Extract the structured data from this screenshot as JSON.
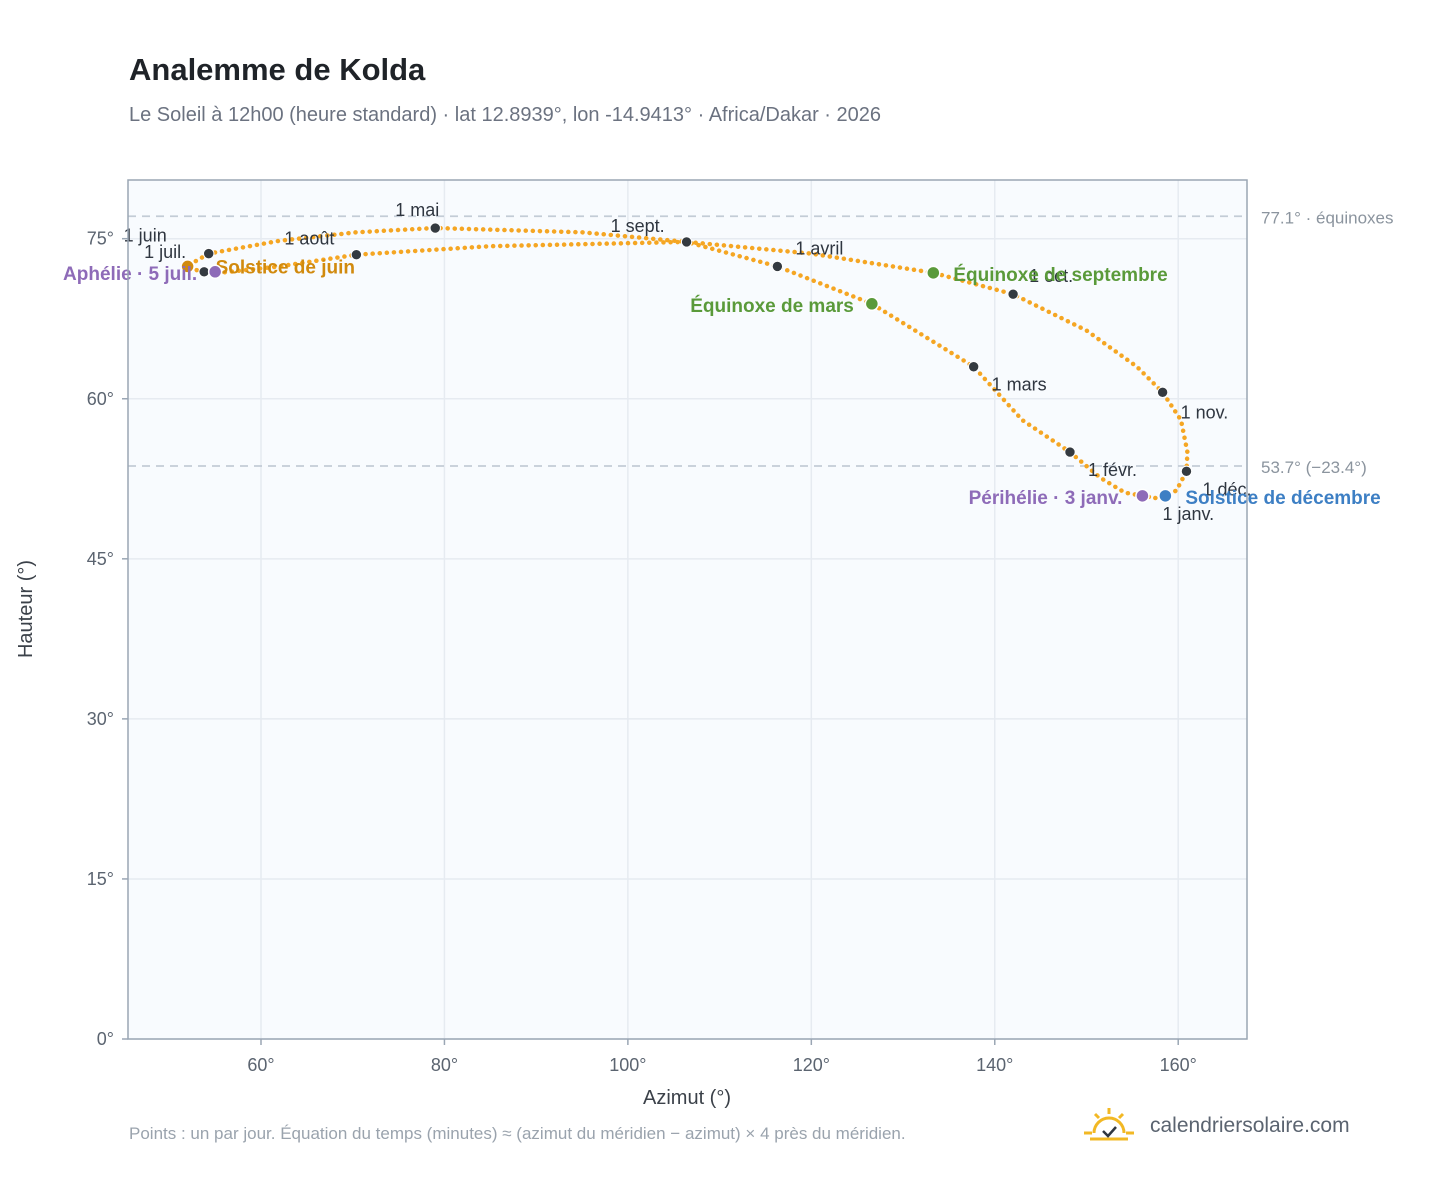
{
  "header": {
    "title": "Analemme de Kolda",
    "subtitle": "Le Soleil à 12h00 (heure standard) · lat 12.8939°, lon -14.9413° · Africa/Dakar · 2026"
  },
  "footer": {
    "note": "Points : un par jour. Équation du temps (minutes) ≈ (azimut du méridien − azimut) × 4 près du méridien.",
    "brand": "calendriersolaire.com"
  },
  "colors": {
    "curve": "#f5a623",
    "month_marker": "#343a40",
    "equinox": "#5a9a3a",
    "solstice_june": "#d18a0e",
    "solstice_december": "#3d7fc4",
    "apsis": "#8e6bb8",
    "reference_line": "#c3ccd6",
    "plot_background": "#f8fbfe",
    "grid": "#e6ebf1"
  },
  "chart_data": {
    "type": "scatter",
    "xlabel": "Azimut (°)",
    "ylabel": "Hauteur (°)",
    "xlim": [
      45.5,
      167.5
    ],
    "ylim": [
      0,
      80.5
    ],
    "xticks": [
      60,
      80,
      100,
      120,
      140,
      160
    ],
    "yticks": [
      0,
      15,
      30,
      45,
      60,
      75
    ],
    "xtick_labels": [
      "60°",
      "80°",
      "100°",
      "120°",
      "140°",
      "160°"
    ],
    "ytick_labels": [
      "0°",
      "15°",
      "30°",
      "45°",
      "60°",
      "75°"
    ],
    "grid": true,
    "reference_lines": [
      {
        "y": 77.1,
        "label": "77.1° · équinoxes"
      },
      {
        "y": 53.7,
        "label": "53.7° (−23.4°)"
      }
    ],
    "analemma_path": [
      [
        157.5,
        50.7
      ],
      [
        158.6,
        50.9
      ],
      [
        159.8,
        51.4
      ],
      [
        160.9,
        53.2
      ],
      [
        161.0,
        55.0
      ],
      [
        160.3,
        58.0
      ],
      [
        158.3,
        60.6
      ],
      [
        155.5,
        63.0
      ],
      [
        150.0,
        66.4
      ],
      [
        142.0,
        69.8
      ],
      [
        133.3,
        71.8
      ],
      [
        120.0,
        73.6
      ],
      [
        106.4,
        74.7
      ],
      [
        95.0,
        75.6
      ],
      [
        79.0,
        76.0
      ],
      [
        70.4,
        75.6
      ],
      [
        62.0,
        74.8
      ],
      [
        54.3,
        73.6
      ],
      [
        51.9,
        72.4
      ],
      [
        53.5,
        71.9
      ],
      [
        55.5,
        71.8
      ],
      [
        62.0,
        72.4
      ],
      [
        70.4,
        73.5
      ],
      [
        85.0,
        74.3
      ],
      [
        106.4,
        74.7
      ],
      [
        116.3,
        72.4
      ],
      [
        126.6,
        68.9
      ],
      [
        137.7,
        63.0
      ],
      [
        143.0,
        58.0
      ],
      [
        148.2,
        55.0
      ],
      [
        151.5,
        52.6
      ],
      [
        154.2,
        51.2
      ],
      [
        157.5,
        50.7
      ]
    ],
    "month_markers": [
      {
        "label": "1 janv.",
        "x": 158.5,
        "y": 50.9
      },
      {
        "label": "1 févr.",
        "x": 148.2,
        "y": 55.0
      },
      {
        "label": "1 mars",
        "x": 137.7,
        "y": 63.0
      },
      {
        "label": "1 avril",
        "x": 116.3,
        "y": 72.4
      },
      {
        "label": "1 mai",
        "x": 79.0,
        "y": 76.0
      },
      {
        "label": "1 juin",
        "x": 54.3,
        "y": 73.6
      },
      {
        "label": "1 juil.",
        "x": 53.8,
        "y": 71.9
      },
      {
        "label": "1 août",
        "x": 70.4,
        "y": 73.5
      },
      {
        "label": "1 sept.",
        "x": 106.4,
        "y": 74.7
      },
      {
        "label": "1 oct.",
        "x": 142.0,
        "y": 69.8
      },
      {
        "label": "1 nov.",
        "x": 158.3,
        "y": 60.6
      },
      {
        "label": "1 déc.",
        "x": 160.9,
        "y": 53.2
      }
    ],
    "events": [
      {
        "label": "Équinoxe de mars",
        "x": 126.6,
        "y": 68.9,
        "kind": "equinox"
      },
      {
        "label": "Équinoxe de septembre",
        "x": 133.3,
        "y": 71.8,
        "kind": "equinox"
      },
      {
        "label": "Solstice de juin",
        "x": 52.0,
        "y": 72.4,
        "kind": "solstice_june"
      },
      {
        "label": "Solstice de décembre",
        "x": 158.6,
        "y": 50.9,
        "kind": "solstice_december"
      },
      {
        "label": "Aphélie · 5 juil.",
        "x": 55.0,
        "y": 71.9,
        "kind": "apsis"
      },
      {
        "label": "Périhélie · 3 janv.",
        "x": 156.1,
        "y": 50.9,
        "kind": "apsis"
      }
    ]
  }
}
